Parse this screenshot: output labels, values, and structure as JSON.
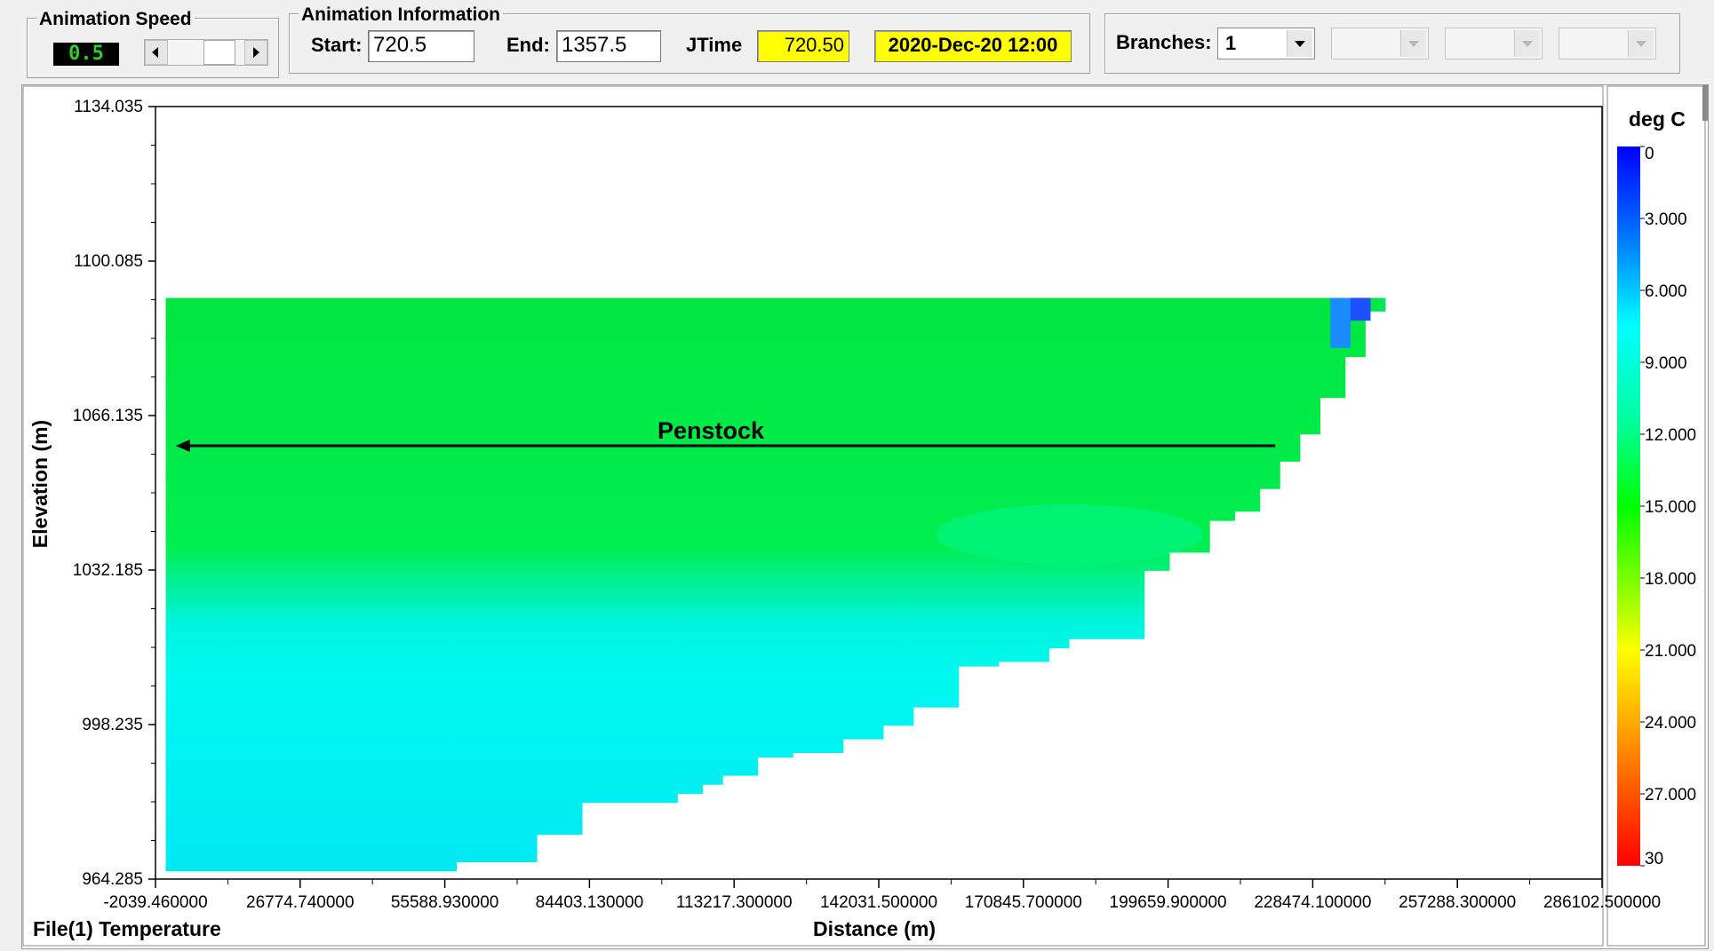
{
  "animation_speed": {
    "title": "Animation Speed",
    "value": "0.5",
    "left_icon": "arrow-left-icon",
    "right_icon": "arrow-right-icon"
  },
  "animation_info": {
    "title": "Animation Information",
    "start_label": "Start:",
    "start_value": "720.5",
    "end_label": "End:",
    "end_value": "1357.5",
    "jtime_label": "JTime",
    "jtime_value": "720.50",
    "date_value": "2020-Dec-20 12:00",
    "highlight_color": "#ffff00"
  },
  "branches": {
    "label": "Branches:",
    "selected": "1",
    "extra_combos": [
      "",
      "",
      ""
    ]
  },
  "plot": {
    "footer_label": "File(1) Temperature",
    "annotation": "Penstock",
    "colorbar_title": "deg C"
  },
  "chart_data": {
    "type": "heatmap",
    "title": "",
    "xlabel": "Distance (m)",
    "ylabel": "Elevation (m)",
    "xlim": [
      -2039.46,
      286102.5
    ],
    "ylim": [
      964.285,
      1134.035
    ],
    "x_ticks": [
      "-2039.460000",
      "26774.740000",
      "55588.930000",
      "84403.130000",
      "113217.300000",
      "142031.500000",
      "170845.700000",
      "199659.900000",
      "228474.100000",
      "257288.300000",
      "286102.500000"
    ],
    "x_tick_values": [
      -2039.46,
      26774.74,
      55588.93,
      84403.13,
      113217.3,
      142031.5,
      170845.7,
      199659.9,
      228474.1,
      257288.3,
      286102.5
    ],
    "y_ticks": [
      "1134.035",
      "1100.085",
      "1066.135",
      "1032.185",
      "998.235",
      "964.285"
    ],
    "y_tick_values": [
      1134.035,
      1100.085,
      1066.135,
      1032.185,
      998.235,
      964.285
    ],
    "colorbar": {
      "title": "deg C",
      "min": 0,
      "max": 30,
      "ticks": [
        "0",
        "3.000",
        "6.000",
        "9.000",
        "12.000",
        "15.000",
        "18.000",
        "21.000",
        "24.000",
        "27.000",
        "30"
      ],
      "colors": [
        "#0000ff",
        "#00a0ff",
        "#00ffff",
        "#00ff80",
        "#00ff00",
        "#80ff00",
        "#ffff00",
        "#ff8000",
        "#ff0000"
      ]
    },
    "surface_elevation": 1092.0,
    "thermocline_elevation": 1059.0,
    "upper_layer_temp_c": 14.0,
    "lower_layer_temp_c": 9.0,
    "cold_inflow_temp_c": 2.5,
    "bathymetry": [
      {
        "x": 0,
        "bottom": 966
      },
      {
        "x": 58000,
        "bottom": 966
      },
      {
        "x": 58000,
        "bottom": 968
      },
      {
        "x": 74000,
        "bottom": 968
      },
      {
        "x": 74000,
        "bottom": 974
      },
      {
        "x": 83000,
        "bottom": 974
      },
      {
        "x": 83000,
        "bottom": 981
      },
      {
        "x": 93000,
        "bottom": 981
      },
      {
        "x": 102000,
        "bottom": 981
      },
      {
        "x": 102000,
        "bottom": 983
      },
      {
        "x": 107000,
        "bottom": 983
      },
      {
        "x": 107000,
        "bottom": 985
      },
      {
        "x": 111000,
        "bottom": 985
      },
      {
        "x": 111000,
        "bottom": 987
      },
      {
        "x": 118000,
        "bottom": 987
      },
      {
        "x": 118000,
        "bottom": 991
      },
      {
        "x": 125000,
        "bottom": 991
      },
      {
        "x": 125000,
        "bottom": 992
      },
      {
        "x": 135000,
        "bottom": 992
      },
      {
        "x": 135000,
        "bottom": 995
      },
      {
        "x": 143000,
        "bottom": 995
      },
      {
        "x": 143000,
        "bottom": 998
      },
      {
        "x": 149000,
        "bottom": 998
      },
      {
        "x": 149000,
        "bottom": 1002
      },
      {
        "x": 158000,
        "bottom": 1002
      },
      {
        "x": 158000,
        "bottom": 1011
      },
      {
        "x": 166000,
        "bottom": 1011
      },
      {
        "x": 166000,
        "bottom": 1012
      },
      {
        "x": 176000,
        "bottom": 1012
      },
      {
        "x": 176000,
        "bottom": 1015
      },
      {
        "x": 180000,
        "bottom": 1015
      },
      {
        "x": 180000,
        "bottom": 1017
      },
      {
        "x": 195000,
        "bottom": 1017
      },
      {
        "x": 195000,
        "bottom": 1032
      },
      {
        "x": 200000,
        "bottom": 1032
      },
      {
        "x": 200000,
        "bottom": 1036
      },
      {
        "x": 208000,
        "bottom": 1036
      },
      {
        "x": 208000,
        "bottom": 1043
      },
      {
        "x": 213000,
        "bottom": 1043
      },
      {
        "x": 213000,
        "bottom": 1045
      },
      {
        "x": 218000,
        "bottom": 1045
      },
      {
        "x": 218000,
        "bottom": 1050
      },
      {
        "x": 222000,
        "bottom": 1050
      },
      {
        "x": 222000,
        "bottom": 1056
      },
      {
        "x": 226000,
        "bottom": 1056
      },
      {
        "x": 226000,
        "bottom": 1062
      },
      {
        "x": 230000,
        "bottom": 1062
      },
      {
        "x": 230000,
        "bottom": 1070
      },
      {
        "x": 235000,
        "bottom": 1070
      },
      {
        "x": 235000,
        "bottom": 1079
      },
      {
        "x": 239000,
        "bottom": 1079
      },
      {
        "x": 239000,
        "bottom": 1089
      },
      {
        "x": 243000,
        "bottom": 1089
      },
      {
        "x": 243000,
        "bottom": 1092
      }
    ],
    "penstock": {
      "x_start": 221000,
      "x_end": 2000,
      "elevation": 1059.5
    }
  }
}
